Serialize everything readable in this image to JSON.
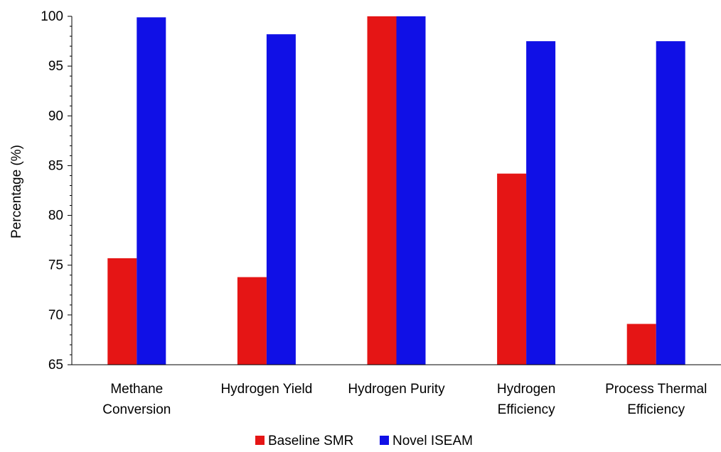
{
  "chart_data": {
    "type": "bar",
    "title": "",
    "xlabel": "",
    "ylabel": "Percentage (%)",
    "ylim": [
      65,
      100
    ],
    "yticks": [
      65,
      70,
      75,
      80,
      85,
      90,
      95,
      100
    ],
    "grid": false,
    "legend_position": "bottom",
    "categories": [
      [
        "Methane",
        "Conversion"
      ],
      [
        "Hydrogen Yield"
      ],
      [
        "Hydrogen Purity"
      ],
      [
        "Hydrogen",
        "Efficiency"
      ],
      [
        "Process Thermal",
        "Efficiency"
      ]
    ],
    "series": [
      {
        "name": "Baseline SMR",
        "color": "#e51515",
        "values": [
          75.7,
          73.8,
          100,
          84.2,
          69.1
        ]
      },
      {
        "name": "Novel ISEAM",
        "color": "#1010e6",
        "values": [
          99.9,
          98.2,
          100,
          97.5,
          97.5
        ]
      }
    ]
  }
}
